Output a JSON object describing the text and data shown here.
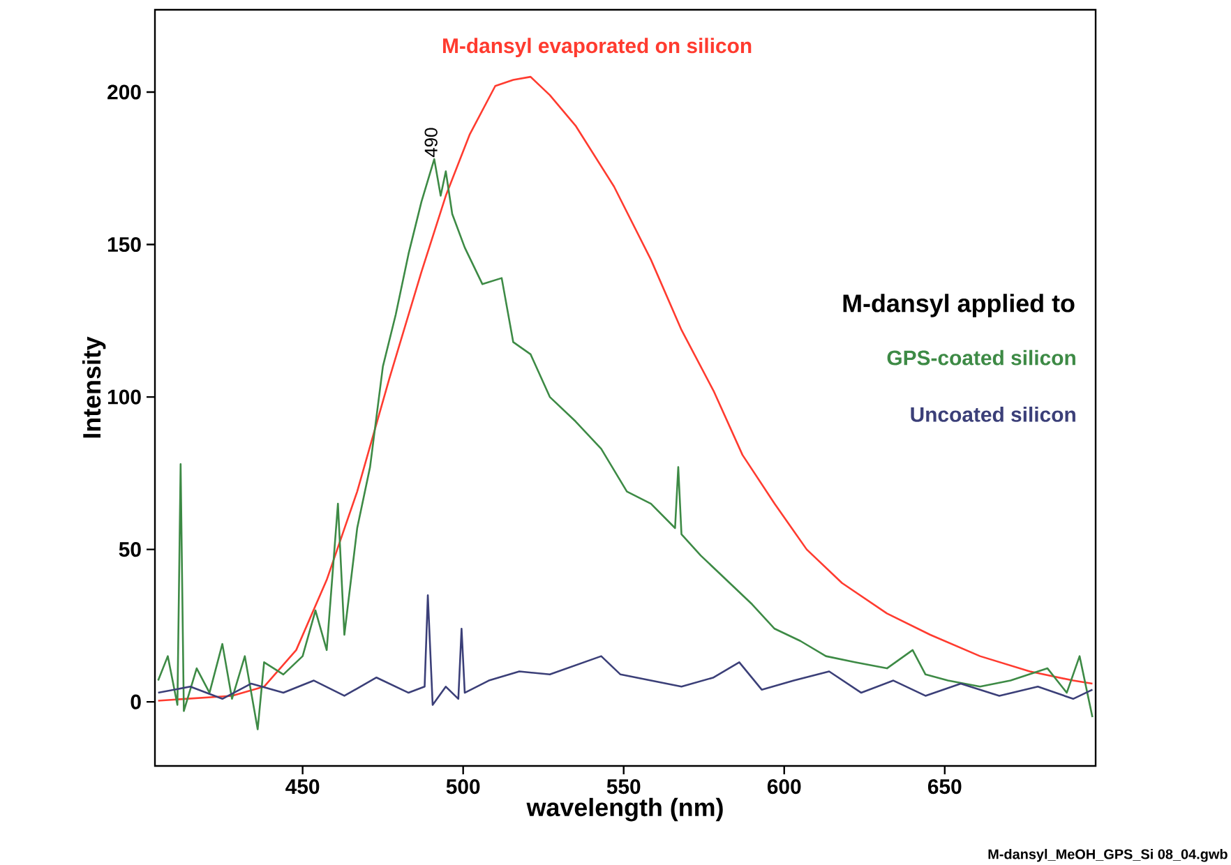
{
  "chart_data": {
    "type": "line",
    "xlabel": "wavelength (nm)",
    "ylabel": "Intensity",
    "xlim": [
      404,
      697
    ],
    "ylim": [
      -21,
      227
    ],
    "xticks": [
      450,
      500,
      550,
      600,
      650
    ],
    "yticks": [
      0,
      50,
      100,
      150,
      200
    ],
    "grid": false,
    "legend": false,
    "marker": "none",
    "line_style": "solid",
    "annotations": [
      {
        "text": "490",
        "x": 490,
        "y": 178
      },
      "M-dansyl applied to",
      "M-dansyl_MeOH_GPS_Si 08_04.gwb"
    ],
    "series": [
      {
        "name": "M-dansyl evaporated on silicon",
        "color": "#ff3b2f",
        "x": [
          405,
          428,
          438,
          448,
          457.5,
          467,
          477,
          487,
          494.6,
          502,
          510,
          515.6,
          521,
          527,
          535,
          547,
          558.5,
          568,
          578,
          587,
          597,
          607,
          618,
          632,
          645.5,
          661,
          676.5,
          690,
          696
        ],
        "values": [
          0.4,
          2,
          5,
          17,
          40,
          69,
          106,
          141,
          166,
          186,
          202,
          204,
          205,
          199,
          189,
          169,
          145,
          122,
          102,
          81,
          65,
          50,
          39,
          29,
          22,
          15,
          10,
          7,
          6
        ]
      },
      {
        "name": "GPS-coated silicon",
        "color": "#3d8a45",
        "x": [
          405,
          408,
          411,
          412,
          413,
          417,
          421,
          425,
          428,
          432,
          436,
          438,
          444,
          450,
          454,
          457.5,
          461,
          463,
          467,
          471,
          475,
          479,
          483,
          487,
          491,
          493,
          494.6,
          496.6,
          500.5,
          506,
          512,
          515.6,
          521,
          527,
          535,
          543,
          551,
          558.5,
          566,
          567,
          568,
          574,
          582,
          590,
          597,
          605,
          613,
          622,
          632,
          640,
          644,
          651,
          661,
          670.5,
          682,
          688,
          692,
          696
        ],
        "values": [
          7,
          15,
          -1,
          78,
          -3,
          11,
          3,
          19,
          1,
          15,
          -9,
          13,
          9,
          15,
          30,
          17,
          65,
          22,
          57,
          77,
          110,
          127,
          147,
          164,
          178,
          166,
          174,
          160,
          149,
          137,
          139,
          118,
          114,
          100,
          92,
          83,
          69,
          65,
          57,
          77,
          55,
          48,
          40,
          32,
          24,
          20,
          15,
          13,
          11,
          17,
          9,
          7,
          5,
          7,
          11,
          3,
          15,
          -5
        ]
      },
      {
        "name": "Uncoated silicon",
        "color": "#3b3f78",
        "x": [
          405,
          415,
          425,
          434,
          444,
          453.5,
          463,
          473,
          483,
          488,
          489,
          490.5,
          494.6,
          498.5,
          499.5,
          500.5,
          508,
          517.5,
          527,
          535,
          543,
          549,
          558.5,
          568,
          578,
          586,
          593,
          603,
          614,
          624,
          634,
          644,
          655,
          667,
          679,
          690,
          696
        ],
        "values": [
          3,
          5,
          1,
          6,
          3,
          7,
          2,
          8,
          3,
          5,
          35,
          -1,
          5,
          1,
          24,
          3,
          7,
          10,
          9,
          12,
          15,
          9,
          7,
          5,
          8,
          13,
          4,
          7,
          10,
          3,
          7,
          2,
          6,
          2,
          5,
          1,
          4
        ]
      }
    ]
  }
}
